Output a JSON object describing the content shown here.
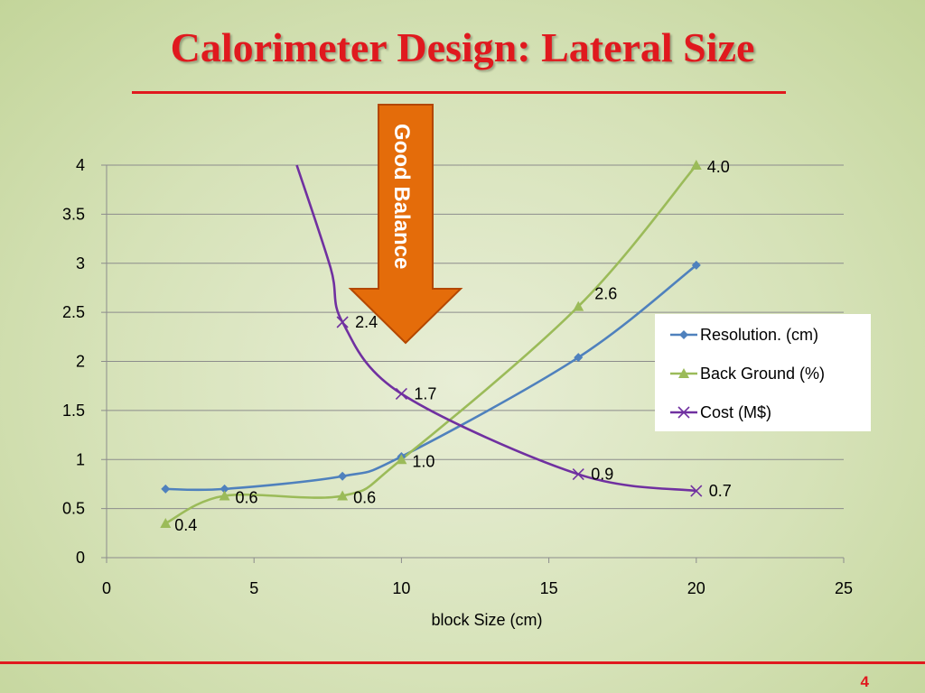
{
  "slide": {
    "title": "Calorimeter Design: Lateral Size",
    "page_number": "4"
  },
  "callout": {
    "label": "Good Balance",
    "fill_color": "#e46c0a"
  },
  "chart_data": {
    "type": "line",
    "xlabel": "block Size (cm)",
    "ylabel": "",
    "xlim": [
      0,
      25
    ],
    "ylim": [
      0,
      4
    ],
    "xticks": [
      0,
      5,
      10,
      15,
      20,
      25
    ],
    "yticks": [
      0,
      0.5,
      1,
      1.5,
      2,
      2.5,
      3,
      3.5,
      4
    ],
    "grid": "horizontal",
    "legend": "right",
    "series": [
      {
        "name": "Resolution. (cm)",
        "marker": "diamond",
        "color": "#4f81bd",
        "x": [
          2,
          4,
          8,
          10,
          16,
          20
        ],
        "y": [
          0.7,
          0.7,
          0.83,
          1.03,
          2.04,
          2.98
        ],
        "labels": []
      },
      {
        "name": "Back Ground (%)",
        "marker": "triangle",
        "color": "#9bbb59",
        "x": [
          2,
          4,
          8,
          10,
          16,
          20
        ],
        "y": [
          0.35,
          0.63,
          0.63,
          1.0,
          2.56,
          4.0
        ],
        "labels": [
          "0.4",
          "0.6",
          "0.6",
          "1.0",
          "2.6",
          "4.0"
        ]
      },
      {
        "name": "Cost (M$)",
        "marker": "x",
        "color": "#7030a0",
        "x": [
          8,
          10,
          16,
          20
        ],
        "y": [
          2.4,
          1.67,
          0.85,
          0.68
        ],
        "labels": [
          "2.4",
          "1.7",
          "0.9",
          "0.7"
        ]
      }
    ]
  }
}
